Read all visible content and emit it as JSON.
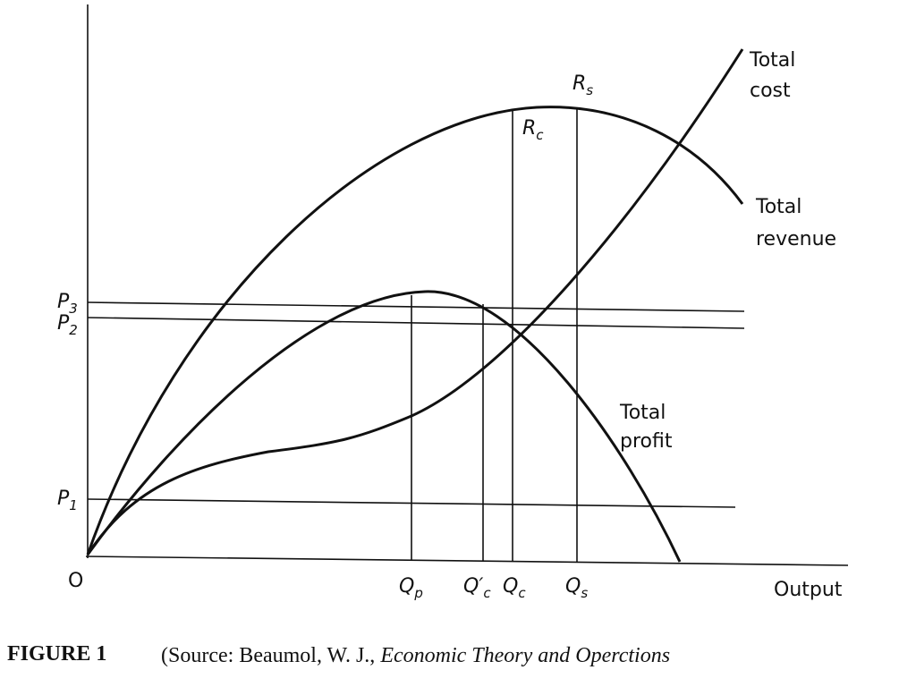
{
  "labels": {
    "total_cost": [
      "Total",
      "cost"
    ],
    "rs": {
      "main": "R",
      "sub": "s"
    },
    "rc": {
      "main": "R",
      "sub": "c"
    },
    "total_revenue": [
      "Total",
      "revenue"
    ],
    "total_profit": [
      "Total",
      "profit"
    ],
    "p3": {
      "main": "P",
      "sub": "3"
    },
    "p2": {
      "main": "P",
      "sub": "2"
    },
    "p1": {
      "main": "P",
      "sub": "1"
    },
    "origin": "O",
    "qp": {
      "main": "Q",
      "sub": "p"
    },
    "qc_prime": {
      "main": "Q",
      "prime": "′",
      "sub": "c"
    },
    "qc": {
      "main": "Q",
      "sub": "c"
    },
    "qs": {
      "main": "Q",
      "sub": "s"
    },
    "output": "Output"
  },
  "caption": {
    "label": "FIGURE 1",
    "text": "(Source: Beaumol, W. J., ",
    "title": "Economic Theory and Operctions"
  }
}
